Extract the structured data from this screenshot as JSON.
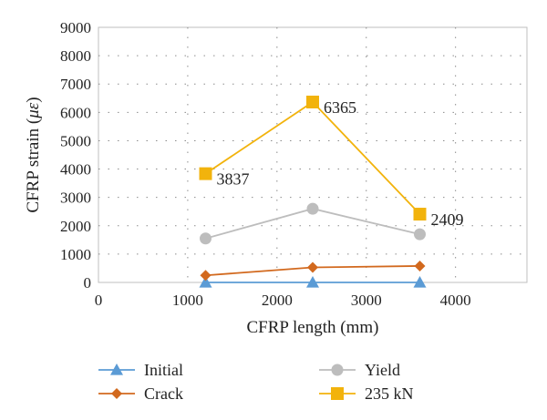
{
  "chart_data": {
    "type": "line",
    "xlabel": "CFRP length (mm)",
    "ylabel_main": "CFRP strain (",
    "ylabel_unit": "με",
    "ylabel_close": ")",
    "xlim": [
      0,
      4800
    ],
    "ylim": [
      0,
      9000
    ],
    "xticks": [
      0,
      1000,
      2000,
      3000,
      4000
    ],
    "yticks": [
      0,
      1000,
      2000,
      3000,
      4000,
      5000,
      6000,
      7000,
      8000,
      9000
    ],
    "grid": "dotted",
    "legend_position": "bottom",
    "x": [
      1200,
      2400,
      3600
    ],
    "series": [
      {
        "name": "Initial",
        "marker": "triangle",
        "color": "#5b9bd5",
        "values": [
          0,
          0,
          0
        ]
      },
      {
        "name": "Crack",
        "marker": "diamond",
        "color": "#d2691e",
        "values": [
          250,
          530,
          580
        ]
      },
      {
        "name": "Yield",
        "marker": "circle",
        "color": "#bdbdbd",
        "values": [
          1550,
          2600,
          1700
        ]
      },
      {
        "name": "235 kN",
        "marker": "square",
        "color": "#f2b30c",
        "values": [
          3837,
          6365,
          2409
        ]
      }
    ],
    "data_labels": [
      {
        "series": "235 kN",
        "index": 0,
        "text": "3837"
      },
      {
        "series": "235 kN",
        "index": 1,
        "text": "6365"
      },
      {
        "series": "235 kN",
        "index": 2,
        "text": "2409"
      }
    ]
  }
}
